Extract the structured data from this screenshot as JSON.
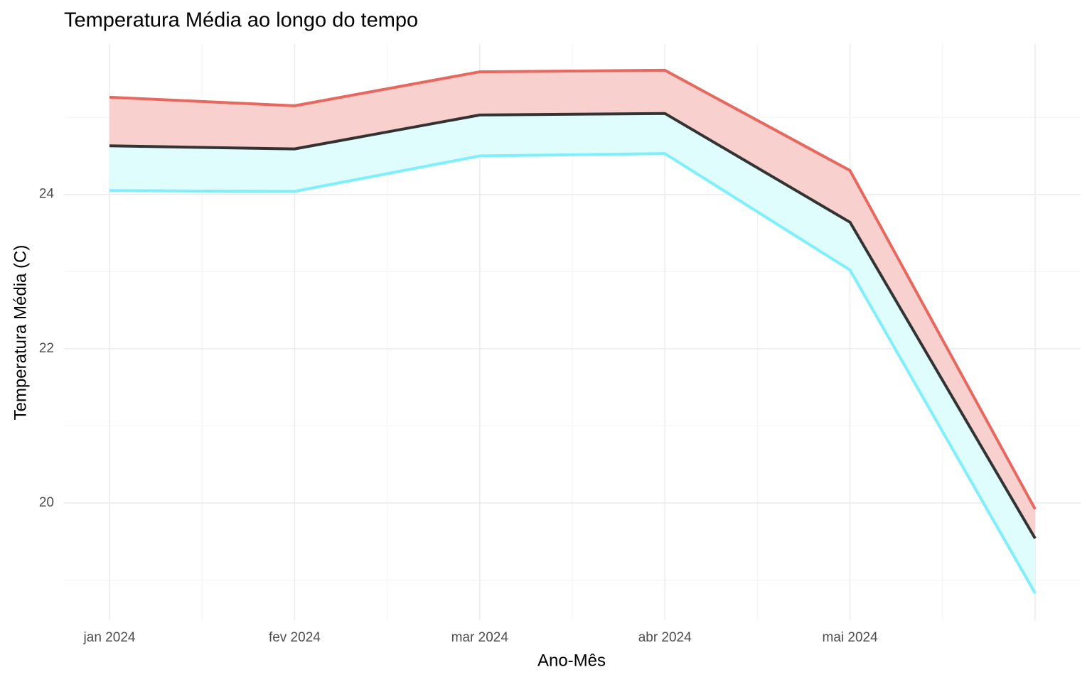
{
  "chart_data": {
    "type": "line",
    "title": "Temperatura Média ao longo do tempo",
    "x_label": "Ano-Mês",
    "y_label": "Temperatura Média (C)",
    "categories": [
      "jan 2024",
      "fev 2024",
      "mar 2024",
      "abr 2024",
      "mai 2024",
      null
    ],
    "series": [
      {
        "color": "#e8675f",
        "ribbon_fill": "#f8d0cd",
        "values": [
          25.26,
          25.15,
          25.59,
          25.61,
          24.31,
          19.92
        ]
      },
      {
        "color": "#333333",
        "values": [
          24.63,
          24.59,
          25.03,
          25.05,
          23.64,
          19.54
        ]
      },
      {
        "color": "#7ff0fb",
        "ribbon_fill": "#e0fdfd",
        "values": [
          24.05,
          24.04,
          24.5,
          24.53,
          23.02,
          18.83
        ]
      }
    ],
    "ylim": [
      18.48,
      25.95
    ],
    "yticks": [
      20,
      22,
      24
    ],
    "y_minor_ticks": [
      19,
      21,
      23,
      25
    ],
    "grid": true
  }
}
